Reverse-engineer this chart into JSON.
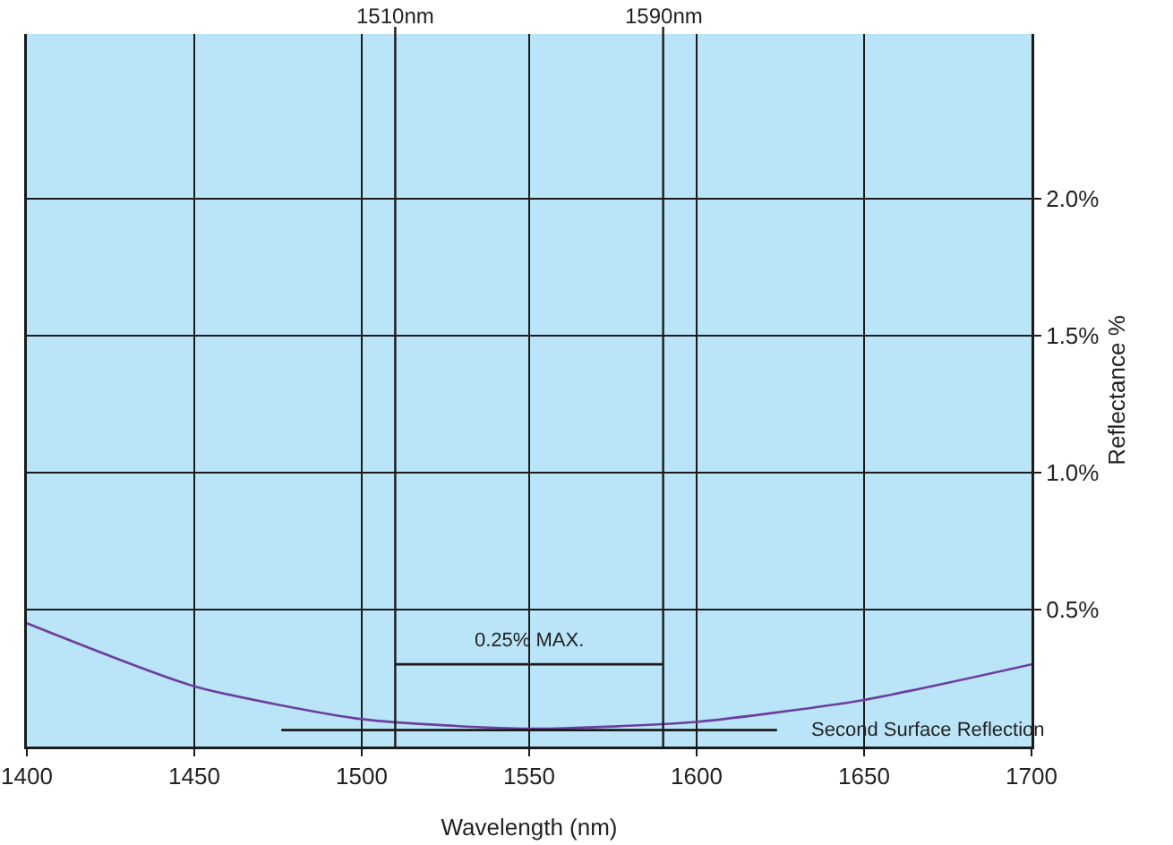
{
  "chart_data": {
    "type": "line",
    "xlabel": "Wavelength (nm)",
    "ylabel": "Reflectance %",
    "xlim": [
      1400,
      1700
    ],
    "xticks": [
      1400,
      1450,
      1500,
      1550,
      1600,
      1650,
      1700
    ],
    "ylim": [
      0,
      2.6
    ],
    "yticks": [
      {
        "value": 0.5,
        "label": "0.5%"
      },
      {
        "value": 1,
        "label": "1.0%"
      },
      {
        "value": 1.5,
        "label": "1.5%"
      },
      {
        "value": 2,
        "label": "2.0%"
      }
    ],
    "series": [
      {
        "color": "#6b3fa0",
        "x": [
          1400,
          1450,
          1500,
          1550,
          1600,
          1650,
          1700
        ],
        "values": [
          0.45,
          0.22,
          0.1,
          0.065,
          0.09,
          0.17,
          0.3
        ]
      },
      {
        "color": "#1a1a1a",
        "x": [
          1510,
          1590
        ],
        "values": [
          0.3,
          0.3
        ]
      },
      {
        "color": "#1a1a1a",
        "x": [
          1476,
          1624
        ],
        "values": [
          0.06,
          0.06
        ]
      }
    ],
    "ref_lines": [
      {
        "axis": "x",
        "value": 1510,
        "label": "1510nm",
        "color": "#1a1a1a"
      },
      {
        "axis": "x",
        "value": 1590,
        "label": "1590nm",
        "color": "#1a1a1a"
      }
    ],
    "annotations": [
      "0.25% MAX.",
      "Second Surface Reflection"
    ],
    "grid": true,
    "marker": "none",
    "line_style": "solid"
  }
}
